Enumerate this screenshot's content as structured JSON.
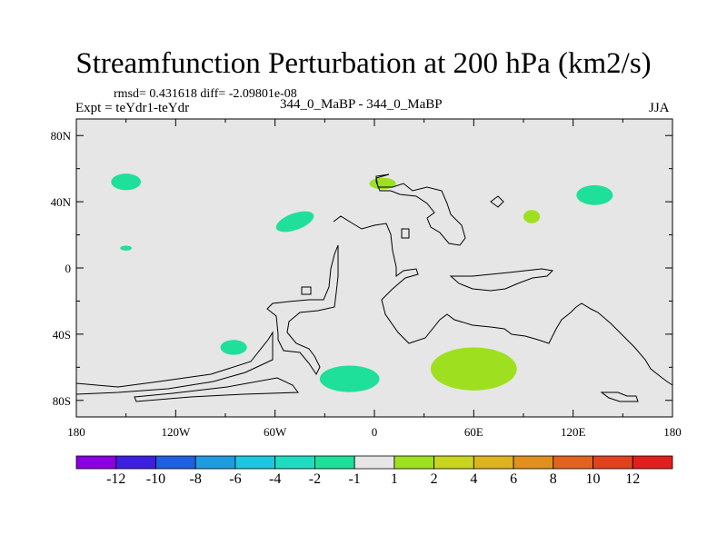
{
  "chart_data": {
    "type": "contour-map",
    "title": "Streamfunction Perturbation at 200 hPa (km2/s)",
    "rmsd_label": "rmsd= 0.431618 diff= -2.09801e-08",
    "experiment_label": "Expt = teYdr1-teYdr",
    "case_label": "344_0_MaBP - 344_0_MaBP",
    "season_label": "JJA",
    "x_axis": {
      "range": [
        -180,
        180
      ],
      "ticks": [
        -180,
        -120,
        -60,
        0,
        60,
        120,
        180
      ],
      "tick_labels": [
        "180",
        "120W",
        "60W",
        "0",
        "60E",
        "120E",
        "180"
      ]
    },
    "y_axis": {
      "range": [
        -90,
        90
      ],
      "ticks": [
        80,
        40,
        0,
        -40,
        -80
      ],
      "tick_labels": [
        "80N",
        "40N",
        "0",
        "40S",
        "80S"
      ]
    },
    "colorbar": {
      "labels": [
        "-12",
        "-10",
        "-8",
        "-6",
        "-4",
        "-2",
        "-1",
        "1",
        "2",
        "4",
        "6",
        "8",
        "10",
        "12"
      ],
      "colors": [
        "#8a00e0",
        "#3d1fe0",
        "#1f5fe0",
        "#1f9ce0",
        "#1fc6e0",
        "#1fdcc0",
        "#1fe09a",
        "#e6e6e6",
        "#9ee01f",
        "#c8d41f",
        "#dcb41f",
        "#e0901f",
        "#e0641f",
        "#e0421f",
        "#e01f1f"
      ]
    },
    "anomaly_regions": [
      {
        "name": "north-pacific-negative",
        "category": "-2 to -1",
        "color": "#1fe09a",
        "lon": -150,
        "lat": 52,
        "dlon": 9,
        "dlat": 5
      },
      {
        "name": "tropical-pacific-negative",
        "category": "-2 to -1",
        "color": "#1fe09a",
        "lon": -150,
        "lat": 12,
        "dlon": 3.5,
        "dlat": 1.5
      },
      {
        "name": "north-atlantic-negative",
        "category": "-2 to -1",
        "color": "#1fe09a",
        "lon": -48,
        "lat": 28,
        "dlon": 12,
        "dlat": 5
      },
      {
        "name": "south-america-negative",
        "category": "-2 to -1",
        "color": "#1fe09a",
        "lon": -85,
        "lat": -48,
        "dlon": 8,
        "dlat": 4.5
      },
      {
        "name": "south-atlantic-negative",
        "category": "-2 to -1",
        "color": "#1fe09a",
        "lon": -15,
        "lat": -67,
        "dlon": 18,
        "dlat": 8
      },
      {
        "name": "north-pacific-east-negative",
        "category": "-2 to -1",
        "color": "#1fe09a",
        "lon": 133,
        "lat": 44,
        "dlon": 11,
        "dlat": 6
      },
      {
        "name": "europe-positive",
        "category": "1 to 2",
        "color": "#9ee01f",
        "lon": 5,
        "lat": 51,
        "dlon": 8,
        "dlat": 3.5
      },
      {
        "name": "asia-positive",
        "category": "1 to 2",
        "color": "#9ee01f",
        "lon": 95,
        "lat": 31,
        "dlon": 5,
        "dlat": 4
      },
      {
        "name": "southern-ocean-positive",
        "category": "1 to 2",
        "color": "#9ee01f",
        "lon": 60,
        "lat": -61,
        "dlon": 26,
        "dlat": 13
      }
    ]
  }
}
